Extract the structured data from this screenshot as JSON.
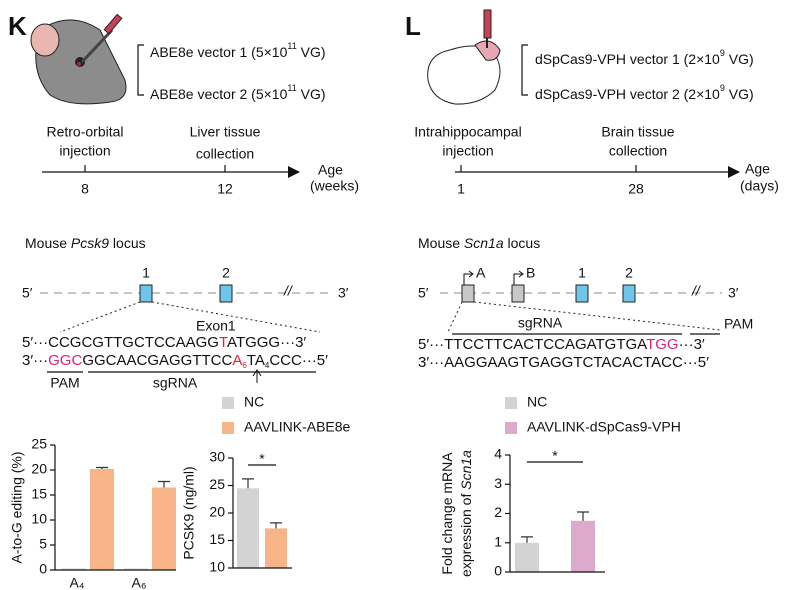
{
  "panel_k": {
    "letter": "K",
    "vector_1": {
      "text": "ABE8e vector 1 (5×10",
      "sup": "11",
      "tail": " VG)"
    },
    "vector_2": {
      "text": "ABE8e vector 2 (5×10",
      "sup": "11",
      "tail": " VG)"
    },
    "timeline": {
      "event_1": [
        "Retro-orbital",
        "injection"
      ],
      "event_2": [
        "Liver tissue",
        "collection"
      ],
      "tick_1": "8",
      "tick_2": "12",
      "axis_label": [
        "Age",
        "(weeks)"
      ]
    },
    "locus_title": [
      "Mouse ",
      "Pcsk9",
      " locus"
    ],
    "exons": [
      "1",
      "2"
    ],
    "end_5": "5′",
    "end_3": "3′",
    "exon_label": "Exon1",
    "sequence_top": [
      "5′···CCGCGTTGCTCCAAGG",
      "T",
      "ATGGG···3′"
    ],
    "sequence_bottom": [
      "3′···",
      "GGC",
      "GGCAACGAGGTTCC",
      "A",
      "6",
      "T",
      "A",
      "4",
      "CCC···5′"
    ],
    "pam": "PAM",
    "sgrna": "sgRNA"
  },
  "panel_l": {
    "letter": "L",
    "vector_1": {
      "text": "dSpCas9-VPH vector 1 (2×10",
      "sup": "9",
      "tail": " VG)"
    },
    "vector_2": {
      "text": "dSpCas9-VPH vector 2 (2×10",
      "sup": "9",
      "tail": " VG)"
    },
    "timeline": {
      "event_1": [
        "Intrahippocampal",
        "injection"
      ],
      "event_2": [
        "Brain tissue",
        "collection"
      ],
      "tick_1": "1",
      "tick_2": "28",
      "axis_label": [
        "Age",
        "(days)"
      ]
    },
    "locus_title": [
      "Mouse ",
      "Scn1a",
      " locus"
    ],
    "promoters": [
      "A",
      "B"
    ],
    "exons": [
      "1",
      "2"
    ],
    "end_5": "5′",
    "end_3": "3′",
    "sgrna": "sgRNA",
    "pam": "PAM",
    "sequence_top": [
      "5′···TTCCTTCACTCCAGATGTGA",
      "TGG",
      "···3′"
    ],
    "sequence_bottom": [
      "3′···AAGGAAGTGAGGTCTACACTACC···5′"
    ]
  },
  "chart_data": [
    {
      "type": "bar",
      "ylabel": "A-to-G editing (%)",
      "categories": [
        "A₄",
        "A₆"
      ],
      "series": [
        {
          "name": "NC",
          "color": "#d3d3d3",
          "values": [
            0.3,
            0.3
          ]
        },
        {
          "name": "AAVLINK-ABE8e",
          "color": "#f6b488",
          "values": [
            20.2,
            16.5
          ],
          "errors": [
            0.3,
            1.2
          ]
        }
      ],
      "ylim": [
        0,
        25
      ],
      "yticks": [
        0,
        5,
        10,
        15,
        20,
        25
      ]
    },
    {
      "type": "bar",
      "ylabel": "PCSK9 (ng/ml)",
      "series": [
        {
          "color": "#d3d3d3",
          "values": [
            24.5
          ],
          "errors": [
            1.7
          ]
        },
        {
          "color": "#f6b488",
          "values": [
            17.2
          ],
          "errors": [
            1.0
          ]
        }
      ],
      "ylim": [
        10,
        30
      ],
      "yticks": [
        10,
        15,
        20,
        25,
        30
      ],
      "annotation": "*"
    },
    {
      "type": "bar",
      "ylabel": [
        "Fold change mRNA",
        "expression of ",
        "Scn1a"
      ],
      "series": [
        {
          "name": "NC",
          "color": "#d3d3d3",
          "values": [
            1.0
          ],
          "errors": [
            0.2
          ]
        },
        {
          "name": "AAVLINK-dSpCas9-VPH",
          "color": "#dcaacb",
          "values": [
            1.75
          ],
          "errors": [
            0.3
          ]
        }
      ],
      "ylim": [
        0,
        4
      ],
      "yticks": [
        0,
        1,
        2,
        3,
        4
      ],
      "annotation": "*"
    }
  ]
}
